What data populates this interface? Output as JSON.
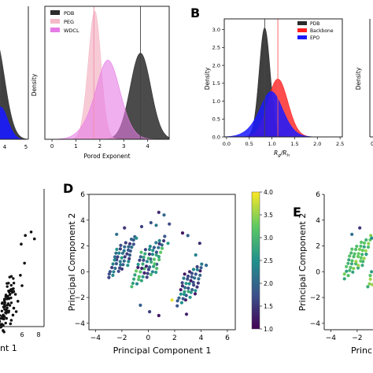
{
  "colors": {
    "pdb": "#2b2b2b",
    "peg": "#f4b9c8",
    "wdcl": "#e67be6",
    "backbone": "#ff2020",
    "epo": "#1a1aff",
    "vline_dark": "#444444",
    "vline_pink": "#f28fb0",
    "vline_red": "#ff5a5a",
    "scatter": "#111111"
  },
  "panel_labels": {
    "b": "B",
    "d": "D",
    "e": "E"
  },
  "chart_data": [
    {
      "id": "left-top-cut",
      "type": "area",
      "title": "",
      "xlabel": "",
      "ylabel": "",
      "xticks": [
        "4",
        "5"
      ],
      "series": [
        {
          "name": "PDB",
          "color": "#2b2b2b"
        },
        {
          "name": "EPO",
          "color": "#1a1aff"
        }
      ]
    },
    {
      "id": "porod",
      "type": "area",
      "xlabel": "Porod Exponent",
      "ylabel": "Density",
      "xlim": [
        -0.3,
        4.9
      ],
      "ylim": [
        0,
        1.05
      ],
      "xticks": [
        "0",
        "1",
        "2",
        "3",
        "4"
      ],
      "legend": "top-left",
      "series": [
        {
          "name": "PDB",
          "color": "#2b2b2b",
          "mu": 3.7,
          "sigma": 0.43,
          "amp": 0.68
        },
        {
          "name": "PEG",
          "color": "#f4b9c8",
          "mu": 1.75,
          "sigma": 0.27,
          "amp": 1.0
        },
        {
          "name": "WDCL",
          "color": "#e67be6",
          "mu": 2.1,
          "sigma": 0.6,
          "amp": 0.56
        }
      ],
      "vlines": [
        1.75,
        3.7
      ]
    },
    {
      "id": "rg-rh",
      "type": "area",
      "xlabel_main": "R",
      "xlabel_sub1": "g",
      "xlabel_mid": "/R",
      "xlabel_sub2": "h",
      "ylabel": "Density",
      "xlim": [
        -0.05,
        2.55
      ],
      "ylim": [
        0,
        3.3
      ],
      "xticks": [
        "0.0",
        "0.5",
        "1.0",
        "1.5",
        "2.0",
        "2.5"
      ],
      "yticks": [
        "0.0",
        "0.5",
        "1.0",
        "1.5",
        "2.0",
        "2.5",
        "3.0"
      ],
      "legend": "top-right",
      "series": [
        {
          "name": "PDB",
          "color": "#2b2b2b",
          "mu": 0.84,
          "sigma": 0.12,
          "amp": 3.05
        },
        {
          "name": "Backbone",
          "color": "#ff2020",
          "mu": 1.13,
          "sigma": 0.22,
          "amp": 1.62
        },
        {
          "name": "EPO",
          "color": "#1a1aff",
          "mu": 0.86,
          "sigma": 0.3,
          "amp": 1.12
        }
      ],
      "vlines": [
        0.84,
        1.13
      ]
    },
    {
      "id": "right-top-cut",
      "type": "area",
      "ylabel": "Density",
      "xticks": [
        "0"
      ]
    },
    {
      "id": "left-bottom-cut",
      "type": "scatter",
      "xlabel": "nt 1",
      "xticks": [
        "6",
        "8"
      ],
      "x": [
        5.9,
        6.4,
        7.1,
        7.5,
        6.3,
        5.8,
        6.0,
        5.2,
        5.5,
        5.0,
        4.9,
        4.7,
        5.3,
        4.6
      ],
      "y": [
        0.9,
        1.4,
        1.6,
        1.2,
        -0.2,
        -0.9,
        -1.5,
        -2.0,
        -2.4,
        -2.8,
        -3.2,
        -3.5,
        -3.0,
        -3.7
      ]
    },
    {
      "id": "pca-d",
      "type": "scatter",
      "xlabel": "Principal Component 1",
      "ylabel": "Principal Component 2",
      "xlim": [
        -4.5,
        6.6
      ],
      "ylim": [
        -4.5,
        6.0
      ],
      "xticks": [
        "−4",
        "−2",
        "0",
        "2",
        "4",
        "6"
      ],
      "xtick_values": [
        -4,
        -2,
        0,
        2,
        4,
        6
      ],
      "yticks": [
        "−4",
        "−2",
        "0",
        "2",
        "4",
        "6"
      ],
      "ytick_values": [
        -4,
        -2,
        0,
        2,
        4,
        6
      ],
      "colorbar": {
        "min": 1.0,
        "max": 4.0,
        "ticks": [
          "1.0",
          "1.5",
          "2.0",
          "2.5",
          "3.0",
          "3.5",
          "4.0"
        ]
      },
      "clusters": [
        {
          "x0": -3.0,
          "y0": -0.5,
          "dx": 0.35,
          "dy": 0.28,
          "rows": 9,
          "cols": 5,
          "slope": 0.9,
          "cmin": 1.5,
          "cmax": 2.6
        },
        {
          "x0": -1.2,
          "y0": -1.2,
          "dx": 0.35,
          "dy": 0.3,
          "rows": 10,
          "cols": 6,
          "slope": 0.8,
          "cmin": 1.3,
          "cmax": 3.3
        },
        {
          "x0": 2.2,
          "y0": -2.6,
          "dx": 0.33,
          "dy": 0.3,
          "rows": 9,
          "cols": 5,
          "slope": 0.7,
          "cmin": 1.2,
          "cmax": 2.8
        }
      ],
      "extras": [
        [
          0.8,
          4.6,
          1.4
        ],
        [
          1.2,
          4.4,
          2.0
        ],
        [
          0.2,
          3.8,
          1.8
        ],
        [
          -0.5,
          3.5,
          1.6
        ],
        [
          -1.8,
          3.4,
          1.5
        ],
        [
          -2.4,
          2.9,
          2.1
        ],
        [
          2.6,
          3.0,
          1.2
        ],
        [
          3.0,
          2.8,
          1.9
        ],
        [
          3.6,
          1.3,
          2.3
        ],
        [
          4.4,
          0.5,
          2.0
        ],
        [
          3.9,
          2.2,
          1.4
        ],
        [
          1.5,
          2.2,
          2.6
        ],
        [
          0.1,
          -3.1,
          1.6
        ],
        [
          0.8,
          -3.4,
          1.2
        ],
        [
          1.8,
          -2.2,
          3.9
        ],
        [
          -0.6,
          -2.6,
          1.9
        ],
        [
          2.9,
          -3.3,
          1.3
        ],
        [
          0.6,
          3.6,
          2.2
        ],
        [
          1.6,
          3.7,
          1.7
        ],
        [
          -0.9,
          2.6,
          2.5
        ]
      ]
    },
    {
      "id": "pca-e-cut",
      "type": "scatter",
      "xlabel": "Princ",
      "ylabel": "Principal Component 2",
      "xlim": [
        -4.5,
        1.0
      ],
      "ylim": [
        -4.5,
        6.0
      ],
      "xticks": [
        "−4",
        "−2"
      ],
      "xtick_values": [
        -4,
        -2
      ],
      "yticks": [
        "−4",
        "−2",
        "0",
        "2",
        "4",
        "6"
      ],
      "ytick_values": [
        -4,
        -2,
        0,
        2,
        4,
        6
      ]
    }
  ]
}
